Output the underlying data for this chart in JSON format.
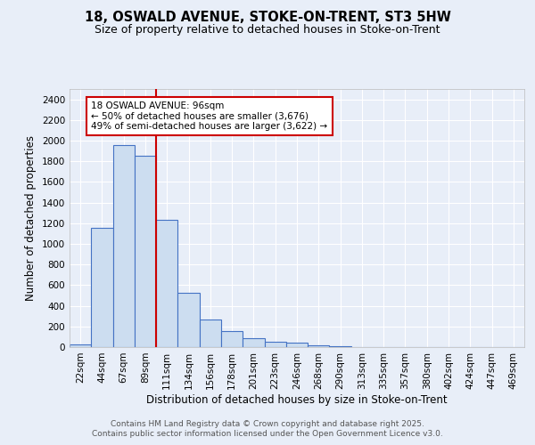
{
  "title_line1": "18, OSWALD AVENUE, STOKE-ON-TRENT, ST3 5HW",
  "title_line2": "Size of property relative to detached houses in Stoke-on-Trent",
  "xlabel": "Distribution of detached houses by size in Stoke-on-Trent",
  "ylabel": "Number of detached properties",
  "bar_labels": [
    "22sqm",
    "44sqm",
    "67sqm",
    "89sqm",
    "111sqm",
    "134sqm",
    "156sqm",
    "178sqm",
    "201sqm",
    "223sqm",
    "246sqm",
    "268sqm",
    "290sqm",
    "313sqm",
    "335sqm",
    "357sqm",
    "380sqm",
    "402sqm",
    "424sqm",
    "447sqm",
    "469sqm"
  ],
  "bar_values": [
    25,
    1155,
    1960,
    1850,
    1230,
    525,
    270,
    155,
    90,
    52,
    44,
    18,
    8,
    4,
    2,
    2,
    1,
    1,
    1,
    1,
    0
  ],
  "bar_color": "#ccddf0",
  "bar_edge_color": "#4472c4",
  "background_color": "#e8eef8",
  "grid_color": "#ffffff",
  "vline_color": "#cc0000",
  "annotation_text": "18 OSWALD AVENUE: 96sqm\n← 50% of detached houses are smaller (3,676)\n49% of semi-detached houses are larger (3,622) →",
  "annotation_box_color": "#ffffff",
  "annotation_box_edge_color": "#cc0000",
  "ylim": [
    0,
    2500
  ],
  "yticks": [
    0,
    200,
    400,
    600,
    800,
    1000,
    1200,
    1400,
    1600,
    1800,
    2000,
    2200,
    2400
  ],
  "footnote1": "Contains HM Land Registry data © Crown copyright and database right 2025.",
  "footnote2": "Contains public sector information licensed under the Open Government Licence v3.0.",
  "title_fontsize": 10.5,
  "subtitle_fontsize": 9,
  "axis_label_fontsize": 8.5,
  "tick_fontsize": 7.5,
  "annotation_fontsize": 7.5,
  "footnote_fontsize": 6.5
}
